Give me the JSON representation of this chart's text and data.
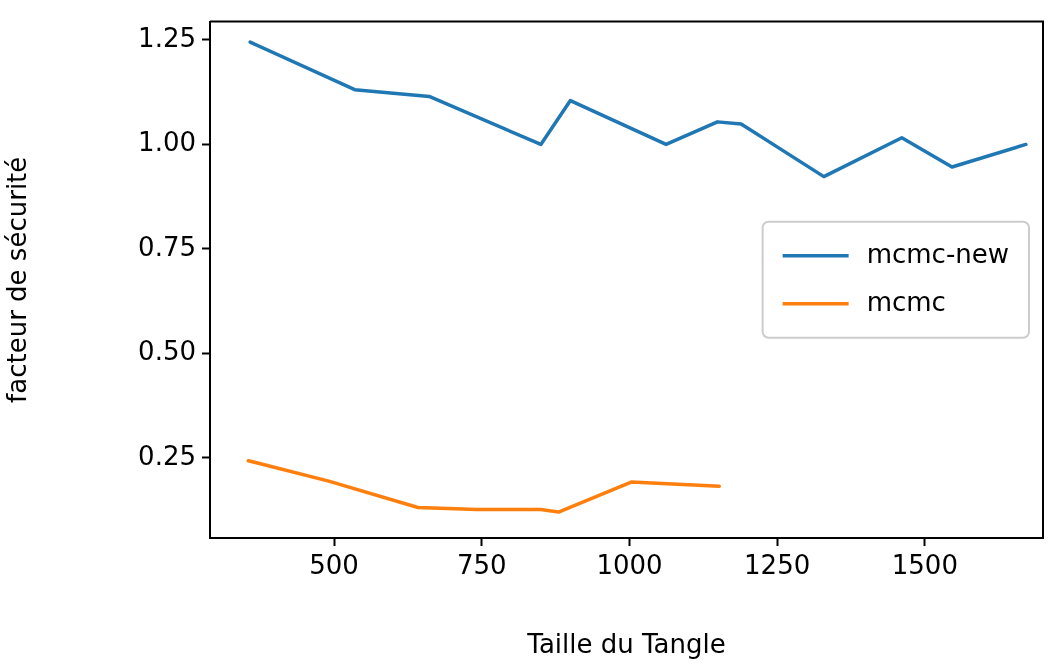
{
  "chart_data": {
    "type": "line",
    "xlabel": "Taille du Tangle",
    "ylabel": "facteur de sécurité",
    "series": [
      {
        "name": "mcmc-new",
        "color": "#1f77b4",
        "x": [
          358,
          535,
          661,
          850,
          900,
          1062,
          1149,
          1189,
          1329,
          1461,
          1546,
          1671
        ],
        "values": [
          1.245,
          1.131,
          1.115,
          1.0,
          1.105,
          1.0,
          1.054,
          1.049,
          0.923,
          1.016,
          0.946,
          1.0
        ]
      },
      {
        "name": "mcmc",
        "color": "#ff7f0e",
        "x": [
          355,
          491,
          642,
          741,
          850,
          880,
          1003,
          1152
        ],
        "values": [
          0.243,
          0.194,
          0.131,
          0.126,
          0.126,
          0.12,
          0.192,
          0.182
        ]
      }
    ],
    "xlim": [
      290,
      1700
    ],
    "ylim": [
      0.058,
      1.294
    ],
    "xticks": [
      500,
      750,
      1000,
      1250,
      1500
    ],
    "yticks": [
      {
        "value": 0.25,
        "label": "0.25"
      },
      {
        "value": 0.5,
        "label": "0.50"
      },
      {
        "value": 0.75,
        "label": "0.75"
      },
      {
        "value": 1.0,
        "label": "1.00"
      },
      {
        "value": 1.25,
        "label": "1.25"
      }
    ],
    "grid": false,
    "legend": "center right",
    "marker": "none",
    "line_style": "solid"
  }
}
